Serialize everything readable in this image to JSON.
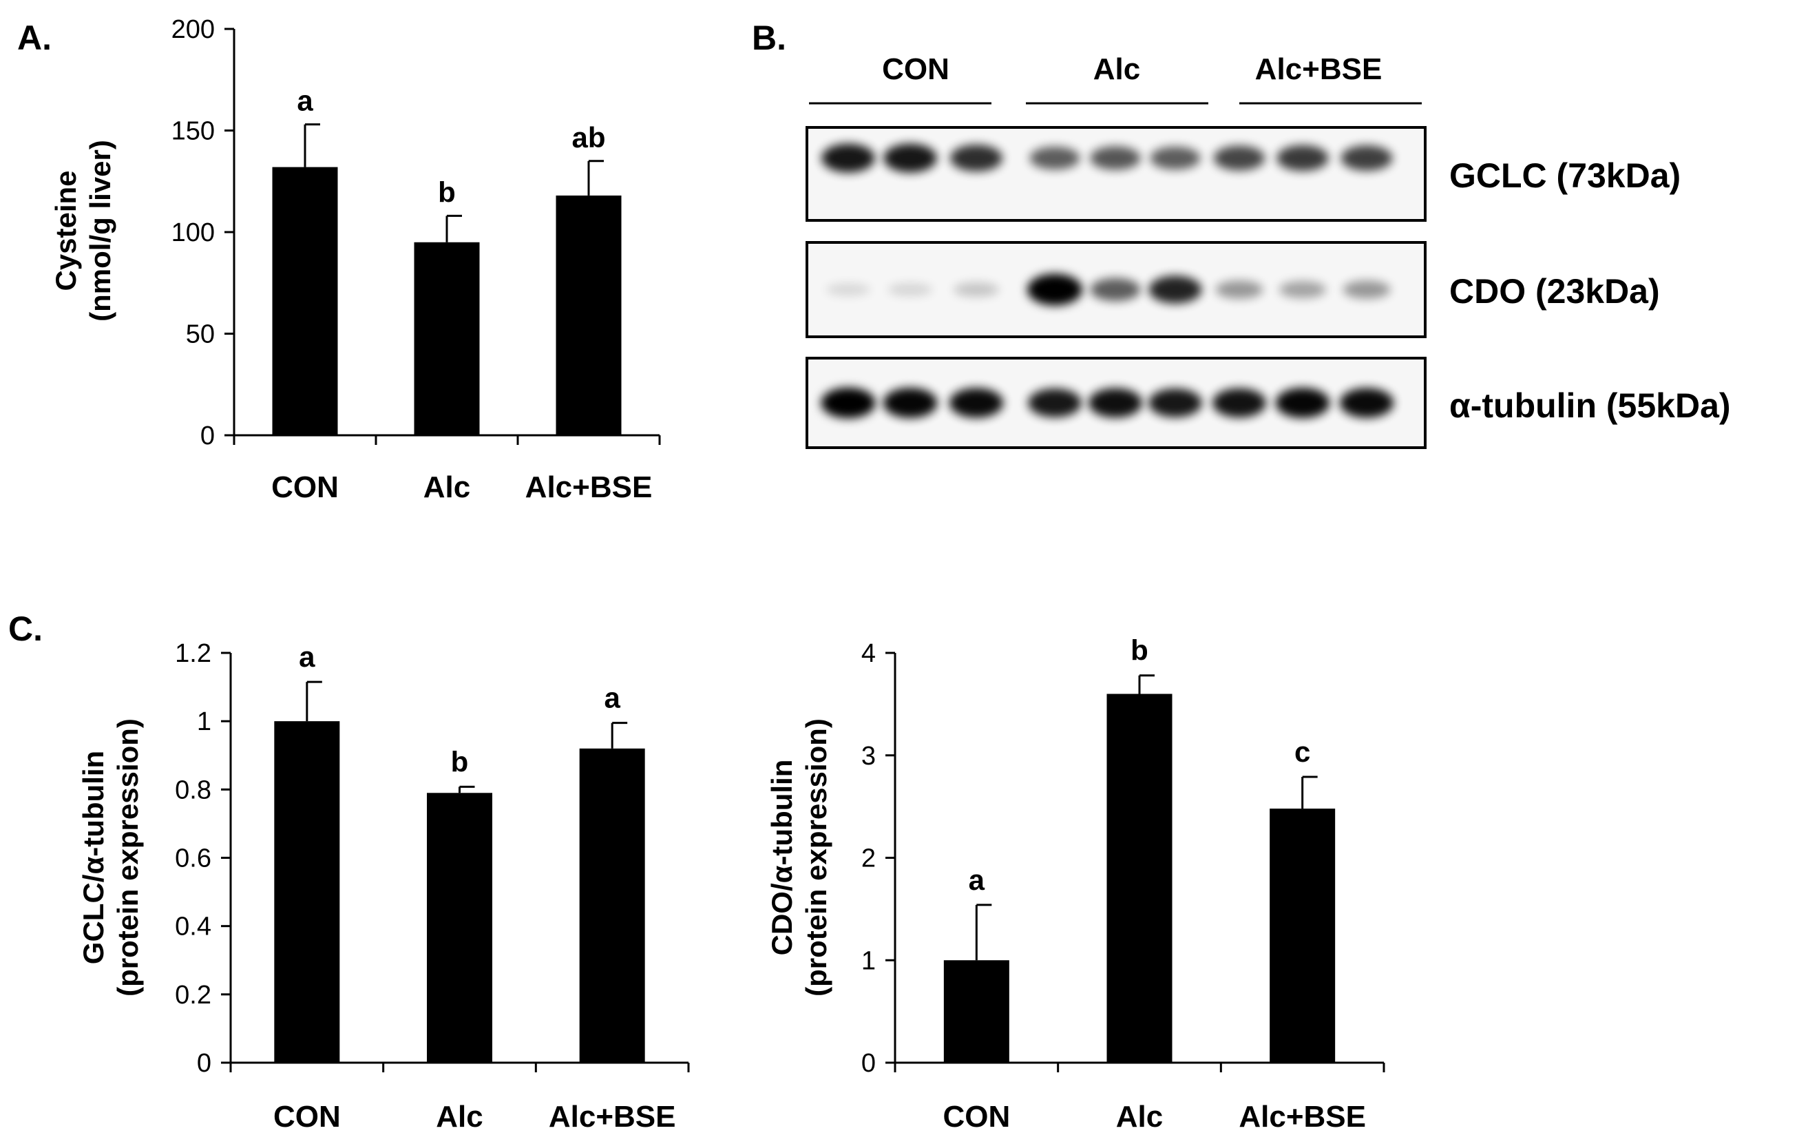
{
  "panels": {
    "a": "A.",
    "b": "B.",
    "c": "C."
  },
  "chart_data": [
    {
      "id": "cysteine",
      "type": "bar",
      "categories": [
        "CON",
        "Alc",
        "Alc+BSE"
      ],
      "values": [
        132,
        95,
        118
      ],
      "errors": [
        21,
        13,
        17
      ],
      "significance": [
        "a",
        "b",
        "ab"
      ],
      "ylabel_line1": "Cysteine",
      "ylabel_line2": "(nmol/g liver)",
      "ylim": [
        0,
        200
      ],
      "yticks": [
        0,
        50,
        100,
        150,
        200
      ],
      "ytick_labels": [
        "0",
        "50",
        "100",
        "150",
        "200"
      ],
      "bar_color": "#000000",
      "grid": false
    },
    {
      "id": "gclc",
      "type": "bar",
      "categories": [
        "CON",
        "Alc",
        "Alc+BSE"
      ],
      "values": [
        1.0,
        0.79,
        0.92
      ],
      "errors": [
        0.115,
        0.018,
        0.075
      ],
      "significance": [
        "a",
        "b",
        "a"
      ],
      "ylabel_line1": "GCLC/α-tubulin",
      "ylabel_line2": "(protein expression)",
      "ylim": [
        0,
        1.2
      ],
      "yticks": [
        0,
        0.2,
        0.4,
        0.6,
        0.8,
        1.0,
        1.2
      ],
      "ytick_labels": [
        "0",
        "0.2",
        "0.4",
        "0.6",
        "0.8",
        "1",
        "1.2"
      ],
      "bar_color": "#000000",
      "grid": false
    },
    {
      "id": "cdo",
      "type": "bar",
      "categories": [
        "CON",
        "Alc",
        "Alc+BSE"
      ],
      "values": [
        1.0,
        3.6,
        2.48
      ],
      "errors": [
        0.54,
        0.18,
        0.31
      ],
      "significance": [
        "a",
        "b",
        "c"
      ],
      "ylabel_line1": "CDO/α-tubulin",
      "ylabel_line2": "(protein expression)",
      "ylim": [
        0,
        4
      ],
      "yticks": [
        0,
        1,
        2,
        3,
        4
      ],
      "ytick_labels": [
        "0",
        "1",
        "2",
        "3",
        "4"
      ],
      "bar_color": "#000000",
      "grid": false
    }
  ],
  "western_blot": {
    "groups": [
      "CON",
      "Alc",
      "Alc+BSE"
    ],
    "lanes_per_group": 3,
    "blots": [
      {
        "label": "GCLC (73kDa)",
        "band_intensities": [
          0.85,
          0.85,
          0.75,
          0.55,
          0.58,
          0.55,
          0.65,
          0.7,
          0.68
        ]
      },
      {
        "label": "CDO (23kDa)",
        "band_intensities": [
          0.02,
          0.03,
          0.1,
          1.0,
          0.55,
          0.8,
          0.3,
          0.25,
          0.3
        ]
      },
      {
        "label": "α-tubulin (55kDa)",
        "band_intensities": [
          0.95,
          0.92,
          0.9,
          0.85,
          0.88,
          0.85,
          0.87,
          0.92,
          0.9
        ]
      }
    ]
  }
}
